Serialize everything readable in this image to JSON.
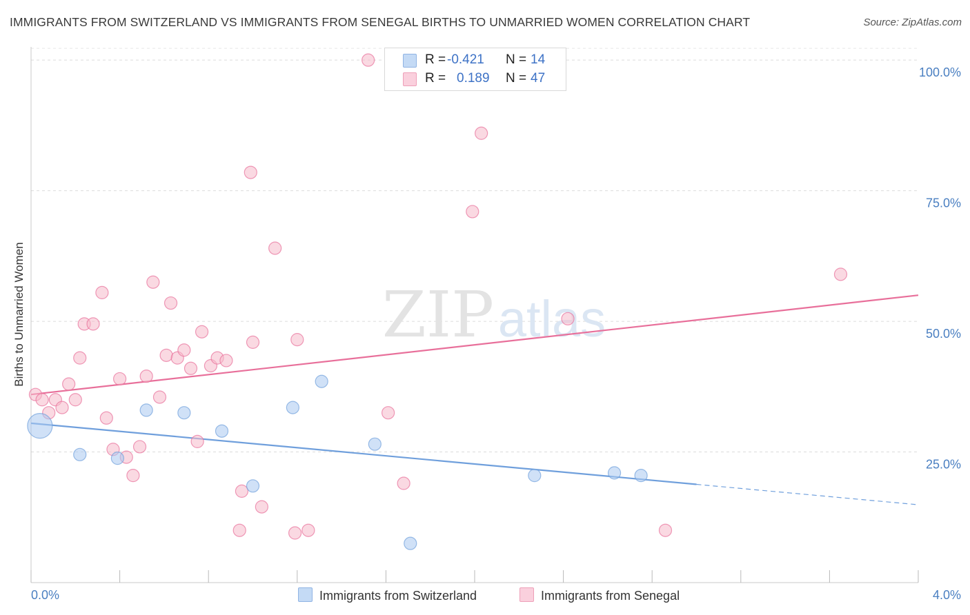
{
  "title": "IMMIGRANTS FROM SWITZERLAND VS IMMIGRANTS FROM SENEGAL BIRTHS TO UNMARRIED WOMEN CORRELATION CHART",
  "source": "Source: ZipAtlas.com",
  "watermark": {
    "zip": "ZIP",
    "atlas": "atlas"
  },
  "legend": {
    "rows": [
      {
        "r_label": "R =",
        "r_value": "-0.421",
        "n_label": "N =",
        "n_value": "14",
        "color": "#a9c8f0"
      },
      {
        "r_label": "R =",
        "r_value": "0.189",
        "n_label": "N =",
        "n_value": "47",
        "color": "#f6b9cb"
      }
    ]
  },
  "bottom_legend": [
    {
      "label": "Immigrants from Switzerland",
      "color": "#a9c8f0"
    },
    {
      "label": "Immigrants from Senegal",
      "color": "#f6b9cb"
    }
  ],
  "chart_data": {
    "type": "scatter",
    "title": "IMMIGRANTS FROM SWITZERLAND VS IMMIGRANTS FROM SENEGAL BIRTHS TO UNMARRIED WOMEN CORRELATION CHART",
    "xlabel": "",
    "ylabel": "Births to Unmarried Women",
    "xlim": [
      0,
      4.0
    ],
    "ylim": [
      0,
      102
    ],
    "x_tick_labels": [
      "0.0%",
      "4.0%"
    ],
    "y_ticks": [
      25,
      50,
      75,
      100
    ],
    "y_tick_labels": [
      "25.0%",
      "50.0%",
      "75.0%",
      "100.0%"
    ],
    "grid": "horizontal dashed",
    "series": [
      {
        "name": "Immigrants from Switzerland",
        "color": "#6f9fdc",
        "fill": "#a9c8f0",
        "points": [
          [
            0.04,
            30.0,
            18
          ],
          [
            0.22,
            24.5,
            9
          ],
          [
            0.39,
            23.8,
            9
          ],
          [
            0.52,
            33.0,
            9
          ],
          [
            0.69,
            32.5,
            9
          ],
          [
            0.86,
            29.0,
            9
          ],
          [
            1.0,
            18.5,
            9
          ],
          [
            1.18,
            33.5,
            9
          ],
          [
            1.31,
            38.5,
            9
          ],
          [
            1.55,
            26.5,
            9
          ],
          [
            1.71,
            7.5,
            9
          ],
          [
            2.27,
            20.5,
            9
          ],
          [
            2.63,
            21.0,
            9
          ],
          [
            2.75,
            20.5,
            9
          ]
        ],
        "trend": {
          "x0": 0.0,
          "y0": 30.5,
          "x1": 3.0,
          "y1": 18.8,
          "dash_to_x": 4.0,
          "dash_to_y": 14.9
        }
      },
      {
        "name": "Immigrants from Senegal",
        "color": "#e86f9a",
        "fill": "#f6b9cb",
        "points": [
          [
            0.02,
            36.0,
            9
          ],
          [
            0.05,
            35.0,
            9
          ],
          [
            0.08,
            32.5,
            9
          ],
          [
            0.11,
            35.0,
            9
          ],
          [
            0.14,
            33.5,
            9
          ],
          [
            0.17,
            38.0,
            9
          ],
          [
            0.2,
            35.0,
            9
          ],
          [
            0.22,
            43.0,
            9
          ],
          [
            0.24,
            49.5,
            9
          ],
          [
            0.28,
            49.5,
            9
          ],
          [
            0.32,
            55.5,
            9
          ],
          [
            0.34,
            31.5,
            9
          ],
          [
            0.37,
            25.5,
            9
          ],
          [
            0.4,
            39.0,
            9
          ],
          [
            0.43,
            24.0,
            9
          ],
          [
            0.46,
            20.5,
            9
          ],
          [
            0.49,
            26.0,
            9
          ],
          [
            0.52,
            39.5,
            9
          ],
          [
            0.55,
            57.5,
            9
          ],
          [
            0.58,
            35.5,
            9
          ],
          [
            0.61,
            43.5,
            9
          ],
          [
            0.63,
            53.5,
            9
          ],
          [
            0.66,
            43.0,
            9
          ],
          [
            0.69,
            44.5,
            9
          ],
          [
            0.72,
            41.0,
            9
          ],
          [
            0.75,
            27.0,
            9
          ],
          [
            0.77,
            48.0,
            9
          ],
          [
            0.81,
            41.5,
            9
          ],
          [
            0.84,
            43.0,
            9
          ],
          [
            0.88,
            42.5,
            9
          ],
          [
            0.94,
            10.0,
            9
          ],
          [
            0.95,
            17.5,
            9
          ],
          [
            0.99,
            78.5,
            9
          ],
          [
            1.0,
            46.0,
            9
          ],
          [
            1.04,
            14.5,
            9
          ],
          [
            1.1,
            64.0,
            9
          ],
          [
            1.2,
            46.5,
            9
          ],
          [
            1.19,
            9.5,
            9
          ],
          [
            1.25,
            10.0,
            9
          ],
          [
            1.52,
            100.0,
            9
          ],
          [
            1.61,
            32.5,
            9
          ],
          [
            1.68,
            19.0,
            9
          ],
          [
            1.99,
            71.0,
            9
          ],
          [
            2.03,
            86.0,
            9
          ],
          [
            2.42,
            50.5,
            9
          ],
          [
            2.86,
            10.0,
            9
          ],
          [
            3.65,
            59.0,
            9
          ]
        ],
        "trend": {
          "x0": 0.0,
          "y0": 36.0,
          "x1": 4.0,
          "y1": 55.0
        }
      }
    ]
  }
}
